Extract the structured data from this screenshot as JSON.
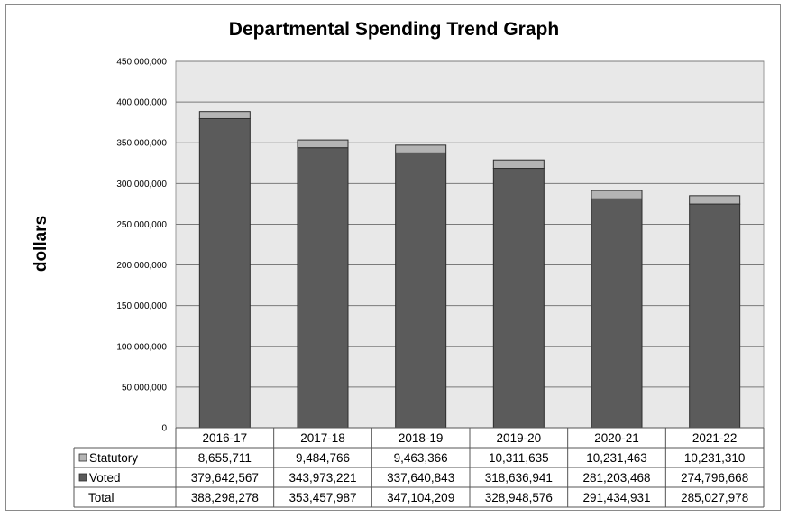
{
  "chart_data": {
    "type": "bar",
    "stacked": true,
    "title": "Departmental Spending Trend Graph",
    "ylabel": "dollars",
    "xlabel": "",
    "ylim": [
      0,
      450000000
    ],
    "yticks": [
      0,
      50000000,
      100000000,
      150000000,
      200000000,
      250000000,
      300000000,
      350000000,
      400000000,
      450000000
    ],
    "ytick_labels": [
      "0",
      "50,000,000",
      "100,000,000",
      "150,000,000",
      "200,000,000",
      "250,000,000",
      "300,000,000",
      "350,000,000",
      "400,000,000",
      "450,000,000"
    ],
    "grid": true,
    "legend": "data-table",
    "categories": [
      "2016-17",
      "2017-18",
      "2018-19",
      "2019-20",
      "2020-21",
      "2021-22"
    ],
    "series": [
      {
        "name": "Voted",
        "color": "#5b5b5b",
        "values": [
          379642567,
          343973221,
          337640843,
          318636941,
          281203468,
          274796668
        ],
        "labels": [
          "379,642,567",
          "343,973,221",
          "337,640,843",
          "318,636,941",
          "281,203,468",
          "274,796,668"
        ]
      },
      {
        "name": "Statutory",
        "color": "#b4b4b4",
        "values": [
          8655711,
          9484766,
          9463366,
          10311635,
          10231463,
          10231310
        ],
        "labels": [
          "8,655,711",
          "9,484,766",
          "9,463,366",
          "10,311,635",
          "10,231,463",
          "10,231,310"
        ]
      }
    ],
    "totals": {
      "name": "Total",
      "values": [
        388298278,
        353457987,
        347104209,
        328948576,
        291434931,
        285027978
      ],
      "labels": [
        "388,298,278",
        "353,457,987",
        "347,104,209",
        "328,948,576",
        "291,434,931",
        "285,027,978"
      ]
    },
    "colors": {
      "plot_background": "#e8e8e8",
      "gridline": "#7a7a7a",
      "bar_edge": "#2e2e2e"
    }
  }
}
